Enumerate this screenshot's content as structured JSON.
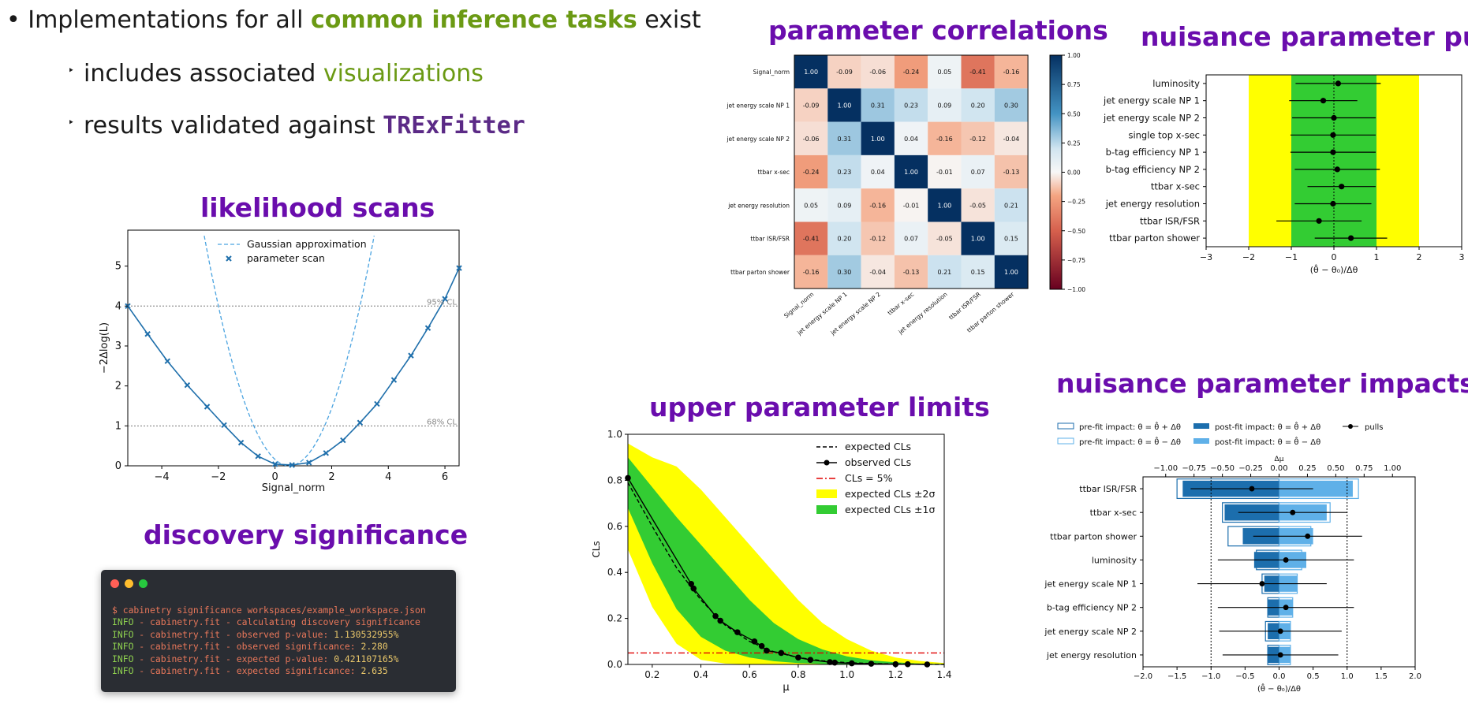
{
  "colors": {
    "accent_green": "#6b9a14",
    "accent_purple": "#6a0dad",
    "ts_purple": "#5b2a86"
  },
  "bullets": {
    "main_pre": "• Implementations for all ",
    "main_em": "common inference tasks",
    "main_post": " exist",
    "sub1_marker": "‣",
    "sub1_pre": "includes associated ",
    "sub1_em": "visualizations",
    "sub2_marker": "‣",
    "sub2_pre": "results validated against ",
    "sub2_em": "TRExFitter"
  },
  "titles": {
    "likelihood": "likelihood scans",
    "significance": "discovery significance",
    "correlations": "parameter correlations",
    "pulls": "nuisance parameter pulls",
    "limits": "upper parameter limits",
    "impacts": "nuisance parameter impacts"
  },
  "terminal": {
    "icons": [
      "close-dot",
      "minimize-dot",
      "maximize-dot"
    ],
    "lines": [
      {
        "pre": "",
        "text": "$ cabinetry significance workspaces/example_workspace.json",
        "val": ""
      },
      {
        "pre": "INFO",
        "text": " - cabinetry.fit - calculating discovery significance",
        "val": ""
      },
      {
        "pre": "INFO",
        "text": " - cabinetry.fit - observed p-value: ",
        "val": "1.130532955%"
      },
      {
        "pre": "INFO",
        "text": " - cabinetry.fit - observed significance: ",
        "val": "2.280"
      },
      {
        "pre": "INFO",
        "text": " - cabinetry.fit - expected p-value: ",
        "val": "0.421107165%"
      },
      {
        "pre": "INFO",
        "text": " - cabinetry.fit - expected significance: ",
        "val": "2.635"
      }
    ]
  },
  "chart_data": [
    {
      "id": "likelihood",
      "type": "line",
      "xlabel": "Signal_norm",
      "ylabel": "−2Δlog(L)",
      "xlim": [
        -5.2,
        6.5
      ],
      "ylim": [
        0,
        5.9
      ],
      "xticks": [
        -4,
        -2,
        0,
        2,
        4,
        6
      ],
      "yticks": [
        0,
        1,
        2,
        3,
        4,
        5
      ],
      "legend": [
        "Gaussian approximation",
        "parameter scan"
      ],
      "cl_lines": [
        {
          "y": 1,
          "label": "68% CL"
        },
        {
          "y": 4,
          "label": "95% CL"
        }
      ],
      "gaussian": {
        "min": 0.5,
        "sigma": 2.5
      },
      "scan_x": [
        -5.2,
        -4.5,
        -3.8,
        -3.1,
        -2.4,
        -1.8,
        -1.2,
        -0.6,
        0.0,
        0.6,
        1.2,
        1.8,
        2.4,
        3.0,
        3.6,
        4.2,
        4.8,
        5.4,
        6.0,
        6.5
      ],
      "scan_y": [
        4.0,
        3.3,
        2.62,
        2.02,
        1.48,
        1.02,
        0.58,
        0.24,
        0.04,
        0.02,
        0.08,
        0.32,
        0.64,
        1.08,
        1.55,
        2.15,
        2.76,
        3.45,
        4.18,
        4.95
      ]
    },
    {
      "id": "correlations",
      "type": "heatmap",
      "labels": [
        "Signal_norm",
        "jet energy scale NP 1",
        "jet energy scale NP 2",
        "ttbar x-sec",
        "jet energy resolution",
        "ttbar ISR/FSR",
        "ttbar parton shower"
      ],
      "matrix": [
        [
          1.0,
          -0.09,
          -0.06,
          -0.24,
          0.05,
          -0.41,
          -0.16
        ],
        [
          -0.09,
          1.0,
          0.31,
          0.23,
          0.09,
          0.2,
          0.3
        ],
        [
          -0.06,
          0.31,
          1.0,
          0.04,
          -0.16,
          -0.12,
          -0.04
        ],
        [
          -0.24,
          0.23,
          0.04,
          1.0,
          -0.01,
          0.07,
          -0.13
        ],
        [
          0.05,
          0.09,
          -0.16,
          -0.01,
          1.0,
          -0.05,
          0.21
        ],
        [
          -0.41,
          0.2,
          -0.12,
          0.07,
          -0.05,
          1.0,
          0.15
        ],
        [
          -0.16,
          0.3,
          -0.04,
          -0.13,
          0.21,
          0.15,
          1.0
        ]
      ],
      "colorbar_ticks": [
        "1.00",
        "0.75",
        "0.50",
        "0.25",
        "0.00",
        "−0.25",
        "−0.50",
        "−0.75",
        "−1.00"
      ]
    },
    {
      "id": "pulls",
      "type": "scatter",
      "xlabel": "(θ̂ − θ₀)/Δθ",
      "xlim": [
        -3,
        3
      ],
      "xticks": [
        "−3",
        "−2",
        "−1",
        "0",
        "1",
        "2",
        "3"
      ],
      "labels": [
        "luminosity",
        "jet energy scale NP 1",
        "jet energy scale NP 2",
        "single top x-sec",
        "b-tag efficiency NP 1",
        "b-tag efficiency NP 2",
        "ttbar x-sec",
        "jet energy resolution",
        "ttbar ISR/FSR",
        "ttbar parton shower"
      ],
      "values": [
        0.1,
        -0.25,
        0.0,
        -0.02,
        -0.02,
        0.08,
        0.18,
        -0.02,
        -0.35,
        0.4
      ],
      "errors": [
        1.0,
        0.8,
        0.98,
        1.0,
        1.0,
        1.0,
        0.8,
        0.9,
        1.0,
        0.85
      ]
    },
    {
      "id": "limits",
      "type": "line",
      "xlabel": "μ",
      "ylabel": "CLs",
      "xlim": [
        0.1,
        1.4
      ],
      "ylim": [
        0,
        1
      ],
      "xticks": [
        0.2,
        0.4,
        0.6,
        0.8,
        1.0,
        1.2,
        1.4
      ],
      "yticks": [
        0.0,
        0.2,
        0.4,
        0.6,
        0.8,
        1.0
      ],
      "legend": [
        "expected CLs",
        "observed CLs",
        "CLs = 5%",
        "expected CLs ±2σ",
        "expected CLs ±1σ"
      ],
      "x": [
        0.1,
        0.2,
        0.3,
        0.4,
        0.5,
        0.6,
        0.7,
        0.8,
        0.9,
        1.0,
        1.1,
        1.2,
        1.3,
        1.4
      ],
      "expected": [
        0.79,
        0.6,
        0.42,
        0.28,
        0.17,
        0.1,
        0.055,
        0.03,
        0.016,
        0.008,
        0.004,
        0.002,
        0.001,
        0.0
      ],
      "band1_lo": [
        0.68,
        0.44,
        0.24,
        0.12,
        0.06,
        0.03,
        0.014,
        0.006,
        0.002,
        0.001,
        0.0,
        0.0,
        0.0,
        0.0
      ],
      "band1_hi": [
        0.9,
        0.77,
        0.64,
        0.52,
        0.4,
        0.28,
        0.18,
        0.11,
        0.065,
        0.035,
        0.018,
        0.009,
        0.004,
        0.002
      ],
      "band2_lo": [
        0.5,
        0.25,
        0.09,
        0.02,
        0.004,
        0.0,
        0.0,
        0.0,
        0.0,
        0.0,
        0.0,
        0.0,
        0.0,
        0.0
      ],
      "band2_hi": [
        0.96,
        0.9,
        0.86,
        0.76,
        0.64,
        0.52,
        0.4,
        0.28,
        0.18,
        0.11,
        0.06,
        0.03,
        0.015,
        0.006
      ],
      "obs_x": [
        0.1,
        0.36,
        0.37,
        0.46,
        0.48,
        0.55,
        0.62,
        0.65,
        0.67,
        0.73,
        0.8,
        0.85,
        0.93,
        0.95,
        1.02,
        1.1,
        1.2,
        1.25,
        1.33
      ],
      "obs_y": [
        0.81,
        0.35,
        0.33,
        0.21,
        0.19,
        0.14,
        0.1,
        0.08,
        0.06,
        0.05,
        0.03,
        0.02,
        0.01,
        0.008,
        0.005,
        0.003,
        0.001,
        0.001,
        0.0
      ],
      "cls_level": 0.05
    },
    {
      "id": "impacts",
      "type": "bar",
      "xlabel": "(θ̂ − θ₀)/Δθ",
      "top_label": "Δμ",
      "xlim": [
        -2,
        2
      ],
      "xticks": [
        "−2.0",
        "−1.5",
        "−1.0",
        "−0.5",
        "0.0",
        "0.5",
        "1.0",
        "1.5",
        "2.0"
      ],
      "top_xticks": [
        "−1.00",
        "−0.75",
        "−0.50",
        "−0.25",
        "0.00",
        "0.25",
        "0.50",
        "0.75",
        "1.00"
      ],
      "legend": [
        "pre-fit impact: θ = θ̂ + Δθ",
        "pre-fit impact: θ = θ̂ − Δθ",
        "post-fit impact: θ = θ̂ + Δθ",
        "post-fit impact: θ = θ̂ − Δθ",
        "pulls"
      ],
      "labels": [
        "ttbar ISR/FSR",
        "ttbar x-sec",
        "ttbar parton shower",
        "luminosity",
        "jet energy scale NP 1",
        "b-tag efficiency NP 2",
        "jet energy scale NP 2",
        "jet energy resolution"
      ],
      "prefit_up": [
        -0.9,
        -0.5,
        -0.45,
        -0.2,
        -0.15,
        -0.1,
        -0.12,
        -0.1
      ],
      "prefit_down": [
        0.7,
        0.45,
        0.28,
        0.2,
        0.16,
        0.12,
        0.1,
        0.1
      ],
      "postfit_up": [
        -0.85,
        -0.48,
        -0.32,
        -0.22,
        -0.13,
        -0.1,
        -0.1,
        -0.1
      ],
      "postfit_down": [
        0.65,
        0.42,
        0.3,
        0.24,
        0.16,
        0.12,
        0.1,
        0.1
      ],
      "pulls": [
        -0.4,
        0.2,
        0.42,
        0.1,
        -0.25,
        0.1,
        0.02,
        0.02
      ],
      "pull_err": [
        0.9,
        0.8,
        0.8,
        1.0,
        0.95,
        1.0,
        0.9,
        0.85
      ]
    }
  ]
}
